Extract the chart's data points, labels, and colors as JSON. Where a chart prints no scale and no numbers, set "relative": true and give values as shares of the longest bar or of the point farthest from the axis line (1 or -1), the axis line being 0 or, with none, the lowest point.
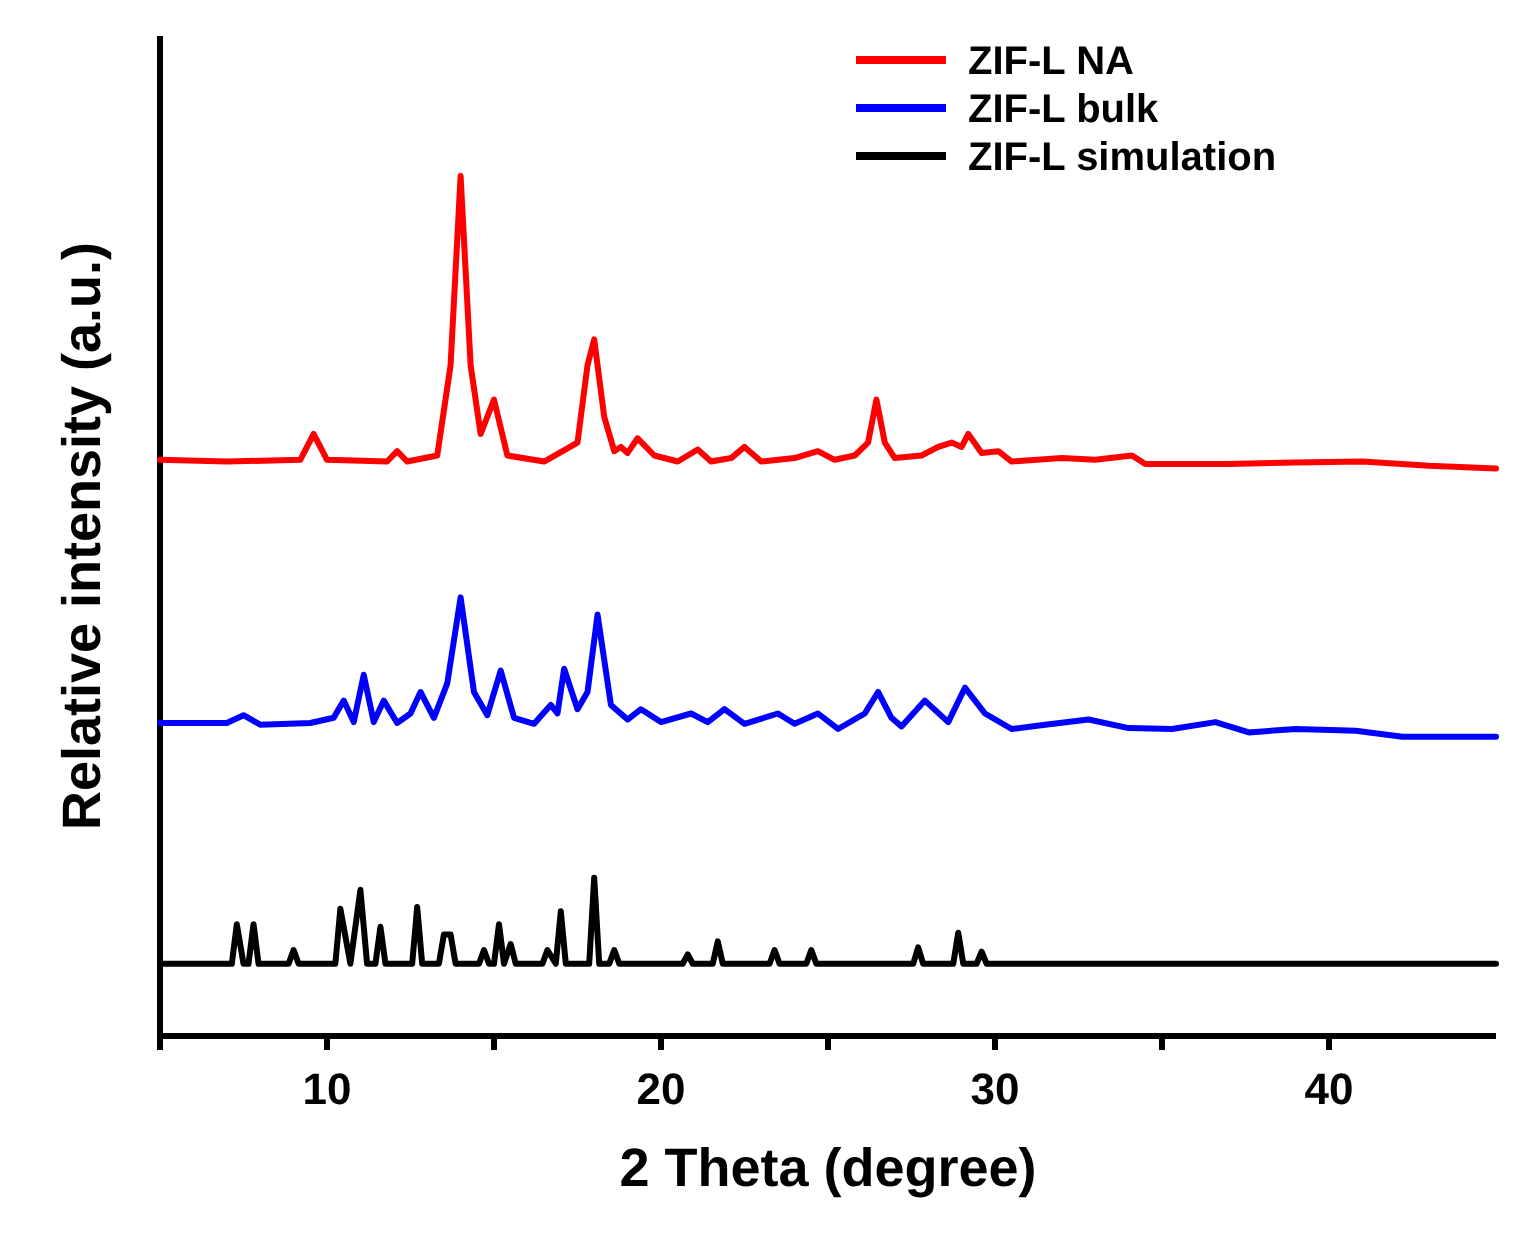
{
  "chart_data": {
    "type": "line",
    "relative": true,
    "xlabel": "2 Theta (degree)",
    "ylabel": "Relative intensity (a.u.)",
    "xlim": [
      5,
      45
    ],
    "xticks": [
      {
        "value": 5,
        "label": null
      },
      10,
      {
        "value": 15,
        "label": null
      },
      20,
      {
        "value": 25,
        "label": null
      },
      30,
      {
        "value": 35,
        "label": null
      },
      40
    ],
    "legend": "top right",
    "grid": false,
    "marker": "none",
    "line_style": "solid",
    "series": [
      {
        "name": "ZIF-L NA",
        "color": "#ff0000",
        "x": [
          5,
          7,
          9.2,
          9.6,
          10,
          11.8,
          12.1,
          12.4,
          13.3,
          13.7,
          14.0,
          14.3,
          14.6,
          15.0,
          15.4,
          16.5,
          17.5,
          17.8,
          18.0,
          18.3,
          18.6,
          18.8,
          19.0,
          19.3,
          19.8,
          20.5,
          21.1,
          21.5,
          22.1,
          22.5,
          23,
          24,
          24.7,
          25.2,
          25.8,
          26.2,
          26.45,
          26.7,
          27,
          27.8,
          28.3,
          28.7,
          29.0,
          29.2,
          29.6,
          30.1,
          30.5,
          32,
          33,
          34.1,
          34.5,
          37,
          39,
          41,
          43,
          45
        ],
        "values": [
          0.67,
          0.668,
          0.67,
          0.7,
          0.67,
          0.668,
          0.68,
          0.668,
          0.675,
          0.78,
          1.0,
          0.78,
          0.7,
          0.74,
          0.675,
          0.668,
          0.69,
          0.78,
          0.81,
          0.72,
          0.68,
          0.685,
          0.678,
          0.695,
          0.675,
          0.668,
          0.682,
          0.668,
          0.672,
          0.685,
          0.668,
          0.672,
          0.68,
          0.67,
          0.675,
          0.69,
          0.74,
          0.69,
          0.672,
          0.675,
          0.685,
          0.69,
          0.685,
          0.7,
          0.678,
          0.68,
          0.668,
          0.672,
          0.67,
          0.675,
          0.665,
          0.665,
          0.667,
          0.668,
          0.663,
          0.66
        ]
      },
      {
        "name": "ZIF-L bulk",
        "color": "#0000ff",
        "x": [
          5,
          7,
          7.5,
          8,
          9.5,
          10.2,
          10.5,
          10.8,
          11.1,
          11.4,
          11.7,
          12.1,
          12.5,
          12.8,
          13.2,
          13.6,
          14.0,
          14.4,
          14.8,
          15.2,
          15.6,
          16.2,
          16.7,
          16.9,
          17.1,
          17.5,
          17.8,
          18.1,
          18.5,
          19,
          19.4,
          20,
          20.9,
          21.4,
          21.9,
          22.5,
          23.5,
          24,
          24.7,
          25.3,
          26.1,
          26.5,
          26.9,
          27.2,
          27.9,
          28.6,
          29.1,
          29.7,
          30.5,
          31.5,
          32.8,
          34,
          35.3,
          36.6,
          37.6,
          39,
          40.8,
          42.2,
          44.4,
          45
        ],
        "values": [
          0.364,
          0.364,
          0.373,
          0.362,
          0.364,
          0.37,
          0.39,
          0.365,
          0.42,
          0.365,
          0.39,
          0.364,
          0.375,
          0.4,
          0.37,
          0.41,
          0.51,
          0.4,
          0.373,
          0.425,
          0.37,
          0.363,
          0.385,
          0.375,
          0.427,
          0.38,
          0.4,
          0.49,
          0.385,
          0.368,
          0.38,
          0.365,
          0.375,
          0.365,
          0.38,
          0.363,
          0.375,
          0.363,
          0.375,
          0.357,
          0.375,
          0.4,
          0.37,
          0.36,
          0.39,
          0.365,
          0.405,
          0.375,
          0.357,
          0.362,
          0.368,
          0.358,
          0.357,
          0.365,
          0.353,
          0.357,
          0.355,
          0.348,
          0.348,
          0.348
        ]
      },
      {
        "name": "ZIF-L simulation",
        "color": "#000000",
        "x": [
          5,
          7.15,
          7.3,
          7.5,
          7.65,
          7.8,
          7.95,
          8.85,
          9.0,
          9.15,
          10.25,
          10.4,
          10.7,
          11.0,
          11.2,
          11.45,
          11.6,
          11.75,
          12.55,
          12.7,
          12.85,
          13.35,
          13.5,
          13.7,
          13.85,
          14.55,
          14.7,
          14.85,
          15.0,
          15.15,
          15.3,
          15.5,
          15.65,
          16.45,
          16.6,
          16.85,
          17.0,
          17.15,
          17.85,
          18.0,
          18.15,
          18.45,
          18.6,
          18.75,
          20.65,
          20.8,
          20.95,
          21.55,
          21.7,
          21.85,
          23.25,
          23.4,
          23.55,
          24.35,
          24.5,
          24.65,
          27.55,
          27.7,
          27.85,
          28.75,
          28.9,
          29.05,
          29.45,
          29.6,
          29.75,
          45
        ],
        "values": [
          0.084,
          0.084,
          0.13,
          0.084,
          0.084,
          0.13,
          0.084,
          0.084,
          0.1,
          0.084,
          0.084,
          0.148,
          0.084,
          0.17,
          0.084,
          0.084,
          0.127,
          0.084,
          0.084,
          0.15,
          0.084,
          0.084,
          0.118,
          0.118,
          0.084,
          0.084,
          0.1,
          0.084,
          0.084,
          0.13,
          0.084,
          0.107,
          0.084,
          0.084,
          0.1,
          0.084,
          0.145,
          0.084,
          0.084,
          0.184,
          0.084,
          0.084,
          0.1,
          0.084,
          0.084,
          0.095,
          0.084,
          0.084,
          0.11,
          0.084,
          0.084,
          0.1,
          0.084,
          0.084,
          0.1,
          0.084,
          0.084,
          0.103,
          0.084,
          0.084,
          0.12,
          0.084,
          0.084,
          0.098,
          0.084,
          0.084
        ]
      }
    ]
  }
}
